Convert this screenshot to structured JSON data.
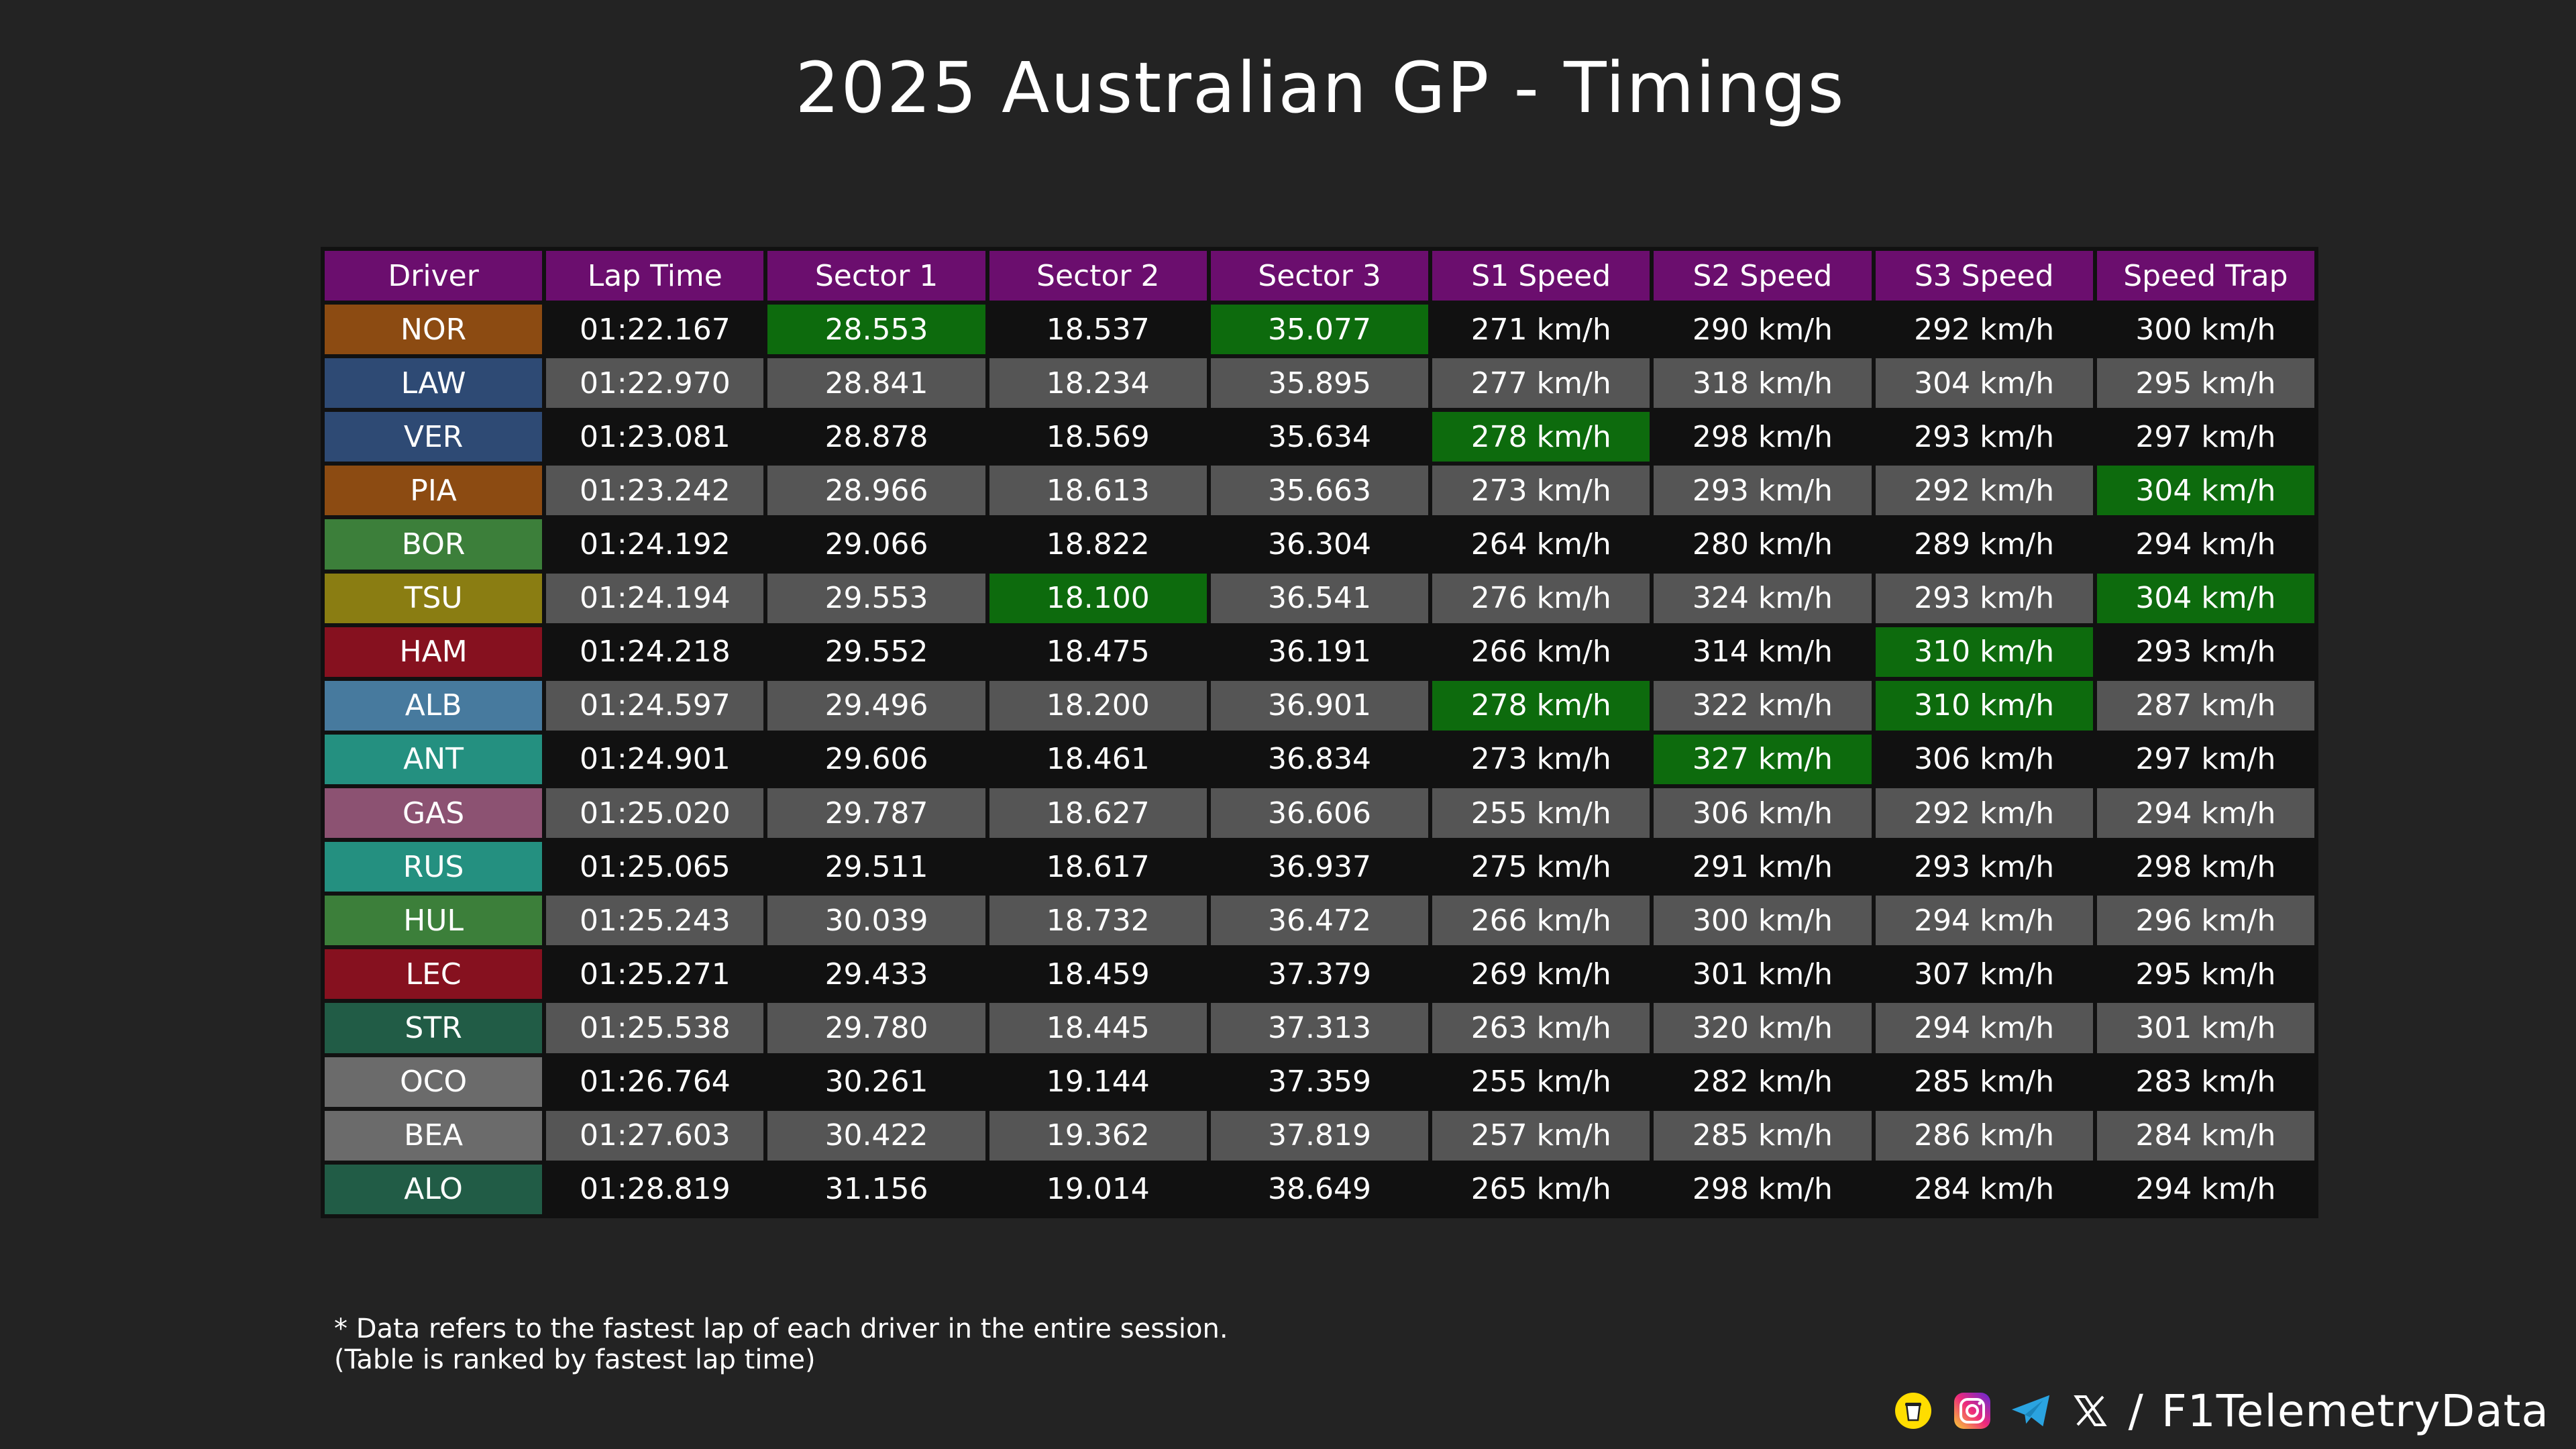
{
  "title": "2025 Australian GP - Timings",
  "watermark": "@F1TelemetryData",
  "colors": {
    "header": "#6b0e6e",
    "best": "#0d6b0d",
    "row_dark": "#111111",
    "row_light": "#555555",
    "teams": {
      "mclaren": "#8c4b12",
      "racing_bulls": "#2e4a74",
      "red_bull": "#2e4a74",
      "sauber": "#3c7f3a",
      "yuki_redbull": "#8a7d12",
      "ferrari": "#86111f",
      "williams": "#477a9e",
      "mercedes": "#249080",
      "alpine": "#8c5272",
      "aston": "#215c46",
      "haas": "#6b6b6b"
    }
  },
  "chart_data": {
    "type": "table",
    "title": "2025 Australian GP - Timings",
    "columns": [
      "Driver",
      "Lap Time",
      "Sector 1",
      "Sector 2",
      "Sector 3",
      "S1 Speed",
      "S2 Speed",
      "S3 Speed",
      "Speed Trap"
    ],
    "rows": [
      {
        "driver": "NOR",
        "team_color": "#8c4b12",
        "cells": [
          "01:22.167",
          "28.553",
          "18.537",
          "35.077",
          "271 km/h",
          "290 km/h",
          "292 km/h",
          "300 km/h"
        ],
        "best": [
          1,
          3
        ]
      },
      {
        "driver": "LAW",
        "team_color": "#2e4a74",
        "cells": [
          "01:22.970",
          "28.841",
          "18.234",
          "35.895",
          "277 km/h",
          "318 km/h",
          "304 km/h",
          "295 km/h"
        ],
        "best": []
      },
      {
        "driver": "VER",
        "team_color": "#2e4a74",
        "cells": [
          "01:23.081",
          "28.878",
          "18.569",
          "35.634",
          "278 km/h",
          "298 km/h",
          "293 km/h",
          "297 km/h"
        ],
        "best": [
          4
        ]
      },
      {
        "driver": "PIA",
        "team_color": "#8c4b12",
        "cells": [
          "01:23.242",
          "28.966",
          "18.613",
          "35.663",
          "273 km/h",
          "293 km/h",
          "292 km/h",
          "304 km/h"
        ],
        "best": [
          7
        ]
      },
      {
        "driver": "BOR",
        "team_color": "#3c7f3a",
        "cells": [
          "01:24.192",
          "29.066",
          "18.822",
          "36.304",
          "264 km/h",
          "280 km/h",
          "289 km/h",
          "294 km/h"
        ],
        "best": []
      },
      {
        "driver": "TSU",
        "team_color": "#8a7d12",
        "cells": [
          "01:24.194",
          "29.553",
          "18.100",
          "36.541",
          "276 km/h",
          "324 km/h",
          "293 km/h",
          "304 km/h"
        ],
        "best": [
          2,
          7
        ]
      },
      {
        "driver": "HAM",
        "team_color": "#86111f",
        "cells": [
          "01:24.218",
          "29.552",
          "18.475",
          "36.191",
          "266 km/h",
          "314 km/h",
          "310 km/h",
          "293 km/h"
        ],
        "best": [
          6
        ]
      },
      {
        "driver": "ALB",
        "team_color": "#477a9e",
        "cells": [
          "01:24.597",
          "29.496",
          "18.200",
          "36.901",
          "278 km/h",
          "322 km/h",
          "310 km/h",
          "287 km/h"
        ],
        "best": [
          4,
          6
        ]
      },
      {
        "driver": "ANT",
        "team_color": "#249080",
        "cells": [
          "01:24.901",
          "29.606",
          "18.461",
          "36.834",
          "273 km/h",
          "327 km/h",
          "306 km/h",
          "297 km/h"
        ],
        "best": [
          5
        ]
      },
      {
        "driver": "GAS",
        "team_color": "#8c5272",
        "cells": [
          "01:25.020",
          "29.787",
          "18.627",
          "36.606",
          "255 km/h",
          "306 km/h",
          "292 km/h",
          "294 km/h"
        ],
        "best": []
      },
      {
        "driver": "RUS",
        "team_color": "#249080",
        "cells": [
          "01:25.065",
          "29.511",
          "18.617",
          "36.937",
          "275 km/h",
          "291 km/h",
          "293 km/h",
          "298 km/h"
        ],
        "best": []
      },
      {
        "driver": "HUL",
        "team_color": "#3c7f3a",
        "cells": [
          "01:25.243",
          "30.039",
          "18.732",
          "36.472",
          "266 km/h",
          "300 km/h",
          "294 km/h",
          "296 km/h"
        ],
        "best": []
      },
      {
        "driver": "LEC",
        "team_color": "#86111f",
        "cells": [
          "01:25.271",
          "29.433",
          "18.459",
          "37.379",
          "269 km/h",
          "301 km/h",
          "307 km/h",
          "295 km/h"
        ],
        "best": []
      },
      {
        "driver": "STR",
        "team_color": "#215c46",
        "cells": [
          "01:25.538",
          "29.780",
          "18.445",
          "37.313",
          "263 km/h",
          "320 km/h",
          "294 km/h",
          "301 km/h"
        ],
        "best": []
      },
      {
        "driver": "OCO",
        "team_color": "#6b6b6b",
        "cells": [
          "01:26.764",
          "30.261",
          "19.144",
          "37.359",
          "255 km/h",
          "282 km/h",
          "285 km/h",
          "283 km/h"
        ],
        "best": []
      },
      {
        "driver": "BEA",
        "team_color": "#6b6b6b",
        "cells": [
          "01:27.603",
          "30.422",
          "19.362",
          "37.819",
          "257 km/h",
          "285 km/h",
          "286 km/h",
          "284 km/h"
        ],
        "best": []
      },
      {
        "driver": "ALO",
        "team_color": "#215c46",
        "cells": [
          "01:28.819",
          "31.156",
          "19.014",
          "38.649",
          "265 km/h",
          "298 km/h",
          "284 km/h",
          "294 km/h"
        ],
        "best": []
      }
    ]
  },
  "footnote": {
    "line1": "* Data refers to the fastest lap of each driver in the entire session.",
    "line2": "(Table is ranked by fastest lap time)"
  },
  "brand": {
    "separator": "/",
    "handle": "F1TelemetryData",
    "icons": [
      "buymeacoffee-icon",
      "instagram-icon",
      "telegram-icon",
      "x-icon"
    ]
  }
}
